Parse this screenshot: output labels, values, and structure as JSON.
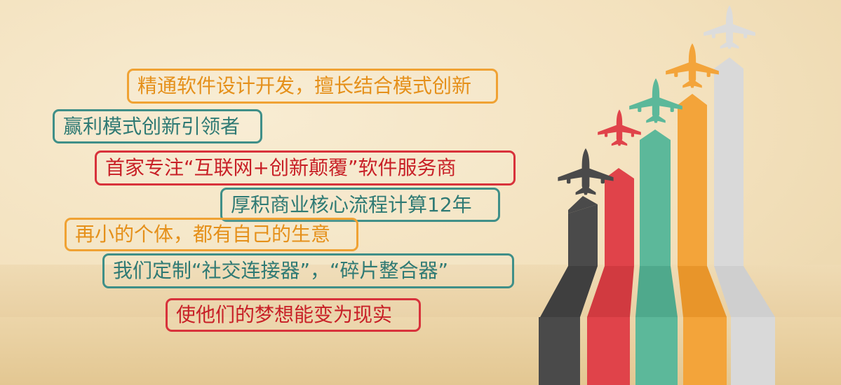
{
  "slogans": [
    {
      "text": "精通软件设计开发，擅长结合模式创新",
      "style": "orange"
    },
    {
      "text": "赢利模式创新引领者",
      "style": "teal"
    },
    {
      "text": "首家专注“互联网+创新颠覆”软件服务商",
      "style": "red"
    },
    {
      "text": "厚积商业核心流程计算12年",
      "style": "teal"
    },
    {
      "text": "再小的个体，都有自己的生意",
      "style": "orange"
    },
    {
      "text": "我们定制“社交连接器”，“碎片整合器”",
      "style": "teal"
    },
    {
      "text": "使他们的梦想能变为现实",
      "style": "red"
    }
  ],
  "colors": {
    "orange": "#f0a233",
    "teal": "#3f8f88",
    "red": "#d8323b",
    "stripe_dark": "#4a4a4a",
    "stripe_red": "#e0434a",
    "stripe_green": "#5cb89a",
    "stripe_orange": "#f3a43a",
    "stripe_gray": "#d9d9d9"
  },
  "illustration": {
    "planes": [
      "airplane-icon-dark",
      "airplane-icon-red",
      "airplane-icon-green",
      "airplane-icon-orange",
      "airplane-icon-gray"
    ]
  }
}
